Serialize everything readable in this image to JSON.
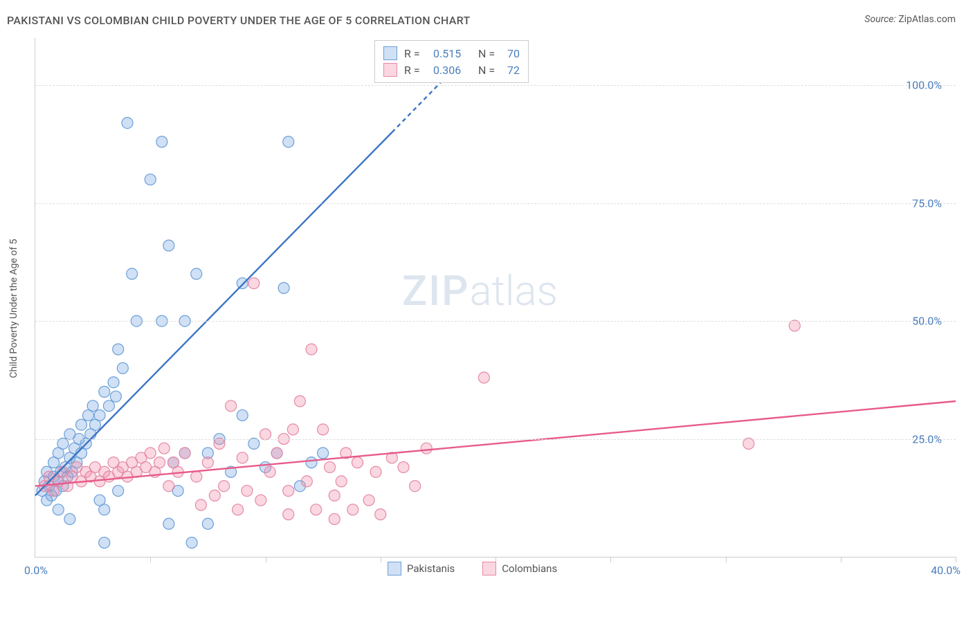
{
  "title": "PAKISTANI VS COLOMBIAN CHILD POVERTY UNDER THE AGE OF 5 CORRELATION CHART",
  "source_label": "Source:",
  "source_value": "ZipAtlas.com",
  "ylabel": "Child Poverty Under the Age of 5",
  "watermark_zip": "ZIP",
  "watermark_atlas": "atlas",
  "chart": {
    "type": "scatter",
    "background_color": "#ffffff",
    "grid_color": "#dddddd",
    "axis_color": "#cccccc",
    "tick_label_color": "#4a7ebb",
    "tick_fontsize": 16,
    "xlim": [
      0,
      40
    ],
    "ylim": [
      0,
      110
    ],
    "y_ticks": [
      25,
      50,
      75,
      100
    ],
    "y_tick_labels": [
      "25.0%",
      "50.0%",
      "75.0%",
      "100.0%"
    ],
    "x_ticks": [
      0,
      5,
      10,
      15,
      20,
      25,
      30,
      35,
      40
    ],
    "x_origin_label": "0.0%",
    "x_max_label": "40.0%",
    "marker_radius": 8,
    "marker_stroke_width": 1.2,
    "trend_line_width": 2.4,
    "series": [
      {
        "name": "Pakistanis",
        "fill_color": "rgba(120,165,225,0.35)",
        "stroke_color": "#6b9fd8",
        "line_color": "#3b74c4",
        "R": "0.515",
        "N": "70",
        "trend_start": [
          0,
          13
        ],
        "trend_end_solid": [
          15.5,
          90
        ],
        "trend_end_dash": [
          18.5,
          105
        ],
        "points": [
          [
            0.3,
            14
          ],
          [
            0.4,
            16
          ],
          [
            0.5,
            12
          ],
          [
            0.5,
            18
          ],
          [
            0.6,
            15
          ],
          [
            0.7,
            13
          ],
          [
            0.8,
            17
          ],
          [
            0.8,
            20
          ],
          [
            0.9,
            14
          ],
          [
            1.0,
            16
          ],
          [
            1.0,
            22
          ],
          [
            1.1,
            18
          ],
          [
            1.2,
            15
          ],
          [
            1.2,
            24
          ],
          [
            1.3,
            19
          ],
          [
            1.4,
            17
          ],
          [
            1.5,
            21
          ],
          [
            1.5,
            26
          ],
          [
            1.6,
            18
          ],
          [
            1.7,
            23
          ],
          [
            1.8,
            20
          ],
          [
            1.9,
            25
          ],
          [
            2.0,
            22
          ],
          [
            2.0,
            28
          ],
          [
            2.2,
            24
          ],
          [
            2.3,
            30
          ],
          [
            2.4,
            26
          ],
          [
            2.5,
            32
          ],
          [
            2.6,
            28
          ],
          [
            2.8,
            30
          ],
          [
            3.0,
            35
          ],
          [
            3.0,
            10
          ],
          [
            3.2,
            32
          ],
          [
            3.4,
            37
          ],
          [
            3.5,
            34
          ],
          [
            3.6,
            44
          ],
          [
            3.6,
            14
          ],
          [
            3.8,
            40
          ],
          [
            4.0,
            92
          ],
          [
            4.2,
            60
          ],
          [
            4.4,
            50
          ],
          [
            5.0,
            80
          ],
          [
            5.5,
            88
          ],
          [
            5.5,
            50
          ],
          [
            5.8,
            7
          ],
          [
            5.8,
            66
          ],
          [
            6.0,
            20
          ],
          [
            6.2,
            14
          ],
          [
            6.5,
            22
          ],
          [
            6.5,
            50
          ],
          [
            7.0,
            60
          ],
          [
            7.5,
            22
          ],
          [
            7.5,
            7
          ],
          [
            8.0,
            25
          ],
          [
            8.5,
            18
          ],
          [
            9.0,
            30
          ],
          [
            9.0,
            58
          ],
          [
            9.5,
            24
          ],
          [
            10.0,
            19
          ],
          [
            10.5,
            22
          ],
          [
            10.8,
            57
          ],
          [
            11.0,
            88
          ],
          [
            11.5,
            15
          ],
          [
            12.0,
            20
          ],
          [
            12.5,
            22
          ],
          [
            3.0,
            3
          ],
          [
            1.5,
            8
          ],
          [
            6.8,
            3
          ],
          [
            2.8,
            12
          ],
          [
            1.0,
            10
          ]
        ]
      },
      {
        "name": "Colombians",
        "fill_color": "rgba(240,140,170,0.35)",
        "stroke_color": "#e589a5",
        "line_color": "#e75b8a",
        "R": "0.306",
        "N": "72",
        "trend_start": [
          0,
          15
        ],
        "trend_end_solid": [
          40,
          33
        ],
        "points": [
          [
            0.4,
            15
          ],
          [
            0.6,
            17
          ],
          [
            0.8,
            14
          ],
          [
            1.0,
            16
          ],
          [
            1.2,
            18
          ],
          [
            1.4,
            15
          ],
          [
            1.6,
            17
          ],
          [
            1.8,
            19
          ],
          [
            2.0,
            16
          ],
          [
            2.2,
            18
          ],
          [
            2.4,
            17
          ],
          [
            2.6,
            19
          ],
          [
            2.8,
            16
          ],
          [
            3.0,
            18
          ],
          [
            3.2,
            17
          ],
          [
            3.4,
            20
          ],
          [
            3.6,
            18
          ],
          [
            3.8,
            19
          ],
          [
            4.0,
            17
          ],
          [
            4.2,
            20
          ],
          [
            4.4,
            18
          ],
          [
            4.6,
            21
          ],
          [
            4.8,
            19
          ],
          [
            5.0,
            22
          ],
          [
            5.2,
            18
          ],
          [
            5.4,
            20
          ],
          [
            5.6,
            23
          ],
          [
            5.8,
            15
          ],
          [
            6.0,
            20
          ],
          [
            6.2,
            18
          ],
          [
            6.5,
            22
          ],
          [
            7.0,
            17
          ],
          [
            7.2,
            11
          ],
          [
            7.5,
            20
          ],
          [
            7.8,
            13
          ],
          [
            8.0,
            24
          ],
          [
            8.2,
            15
          ],
          [
            8.5,
            32
          ],
          [
            8.8,
            10
          ],
          [
            9.0,
            21
          ],
          [
            9.2,
            14
          ],
          [
            9.5,
            58
          ],
          [
            9.8,
            12
          ],
          [
            10.0,
            26
          ],
          [
            10.2,
            18
          ],
          [
            10.5,
            22
          ],
          [
            10.8,
            25
          ],
          [
            11.0,
            14
          ],
          [
            11.2,
            27
          ],
          [
            11.5,
            33
          ],
          [
            11.8,
            16
          ],
          [
            12.0,
            44
          ],
          [
            12.2,
            10
          ],
          [
            12.5,
            27
          ],
          [
            12.8,
            19
          ],
          [
            13.0,
            13
          ],
          [
            13.3,
            16
          ],
          [
            13.5,
            22
          ],
          [
            13.8,
            10
          ],
          [
            14.0,
            20
          ],
          [
            14.5,
            12
          ],
          [
            14.8,
            18
          ],
          [
            15.0,
            9
          ],
          [
            15.5,
            21
          ],
          [
            16.0,
            19
          ],
          [
            16.5,
            15
          ],
          [
            17.0,
            23
          ],
          [
            19.5,
            38
          ],
          [
            31.0,
            24
          ],
          [
            33.0,
            49
          ],
          [
            13.0,
            8
          ],
          [
            11.0,
            9
          ]
        ]
      }
    ]
  },
  "legend_top": {
    "r_label": "R  =",
    "n_label": "N  ="
  },
  "legend_bottom": {
    "items": [
      "Pakistanis",
      "Colombians"
    ]
  }
}
